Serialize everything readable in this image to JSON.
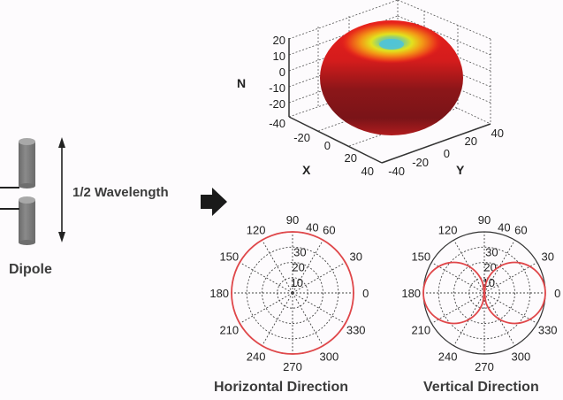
{
  "left": {
    "antenna_label": "Dipole",
    "length_label": "1/2 Wavelength"
  },
  "plot3d": {
    "axis_labels": {
      "z": "N",
      "x": "X",
      "y": "Y"
    },
    "z_ticks": [
      "20",
      "10",
      "0",
      "-10",
      "-20",
      "-40"
    ],
    "x_ticks": [
      "-20",
      "0",
      "20",
      "40"
    ],
    "y_ticks": [
      "-40",
      "-20",
      "0",
      "20",
      "40"
    ],
    "colormap": [
      "#4fc3d8",
      "#b8e03a",
      "#f5e21b",
      "#f39a16",
      "#e8201b",
      "#7a1418"
    ]
  },
  "chart_data": [
    {
      "type": "polar",
      "title": "Horizontal Direction",
      "angle_ticks": [
        0,
        30,
        60,
        90,
        120,
        150,
        180,
        210,
        240,
        270,
        300,
        330
      ],
      "r_ticks": [
        10,
        20,
        30,
        40
      ],
      "rlim": [
        0,
        40
      ],
      "angles_deg": [
        0,
        10,
        20,
        30,
        40,
        50,
        60,
        70,
        80,
        90,
        100,
        110,
        120,
        130,
        140,
        150,
        160,
        170,
        180,
        190,
        200,
        210,
        220,
        230,
        240,
        250,
        260,
        270,
        280,
        290,
        300,
        310,
        320,
        330,
        340,
        350
      ],
      "r": [
        40,
        40,
        40,
        40,
        40,
        40,
        40,
        40,
        40,
        40,
        40,
        40,
        40,
        40,
        40,
        40,
        40,
        40,
        40,
        40,
        40,
        40,
        40,
        40,
        40,
        40,
        40,
        40,
        40,
        40,
        40,
        40,
        40,
        40,
        40,
        40
      ],
      "color": "#e0474a",
      "grid": true
    },
    {
      "type": "polar",
      "title": "Vertical Direction",
      "angle_ticks": [
        0,
        30,
        60,
        90,
        120,
        150,
        180,
        210,
        240,
        270,
        300,
        330
      ],
      "r_ticks": [
        10,
        20,
        30,
        40
      ],
      "rlim": [
        0,
        40
      ],
      "angles_deg": [
        0,
        10,
        20,
        30,
        40,
        50,
        60,
        70,
        80,
        90,
        100,
        110,
        120,
        130,
        140,
        150,
        160,
        170,
        180,
        190,
        200,
        210,
        220,
        230,
        240,
        250,
        260,
        270,
        280,
        290,
        300,
        310,
        320,
        330,
        340,
        350
      ],
      "r": [
        40,
        39.4,
        37.6,
        34.6,
        30.6,
        25.7,
        20,
        13.7,
        6.9,
        0,
        6.9,
        13.7,
        20,
        25.7,
        30.6,
        34.6,
        37.6,
        39.4,
        40,
        39.4,
        37.6,
        34.6,
        30.6,
        25.7,
        20,
        13.7,
        6.9,
        0,
        6.9,
        13.7,
        20,
        25.7,
        30.6,
        34.6,
        37.6,
        39.4
      ],
      "color": "#e0474a",
      "grid": true
    }
  ]
}
